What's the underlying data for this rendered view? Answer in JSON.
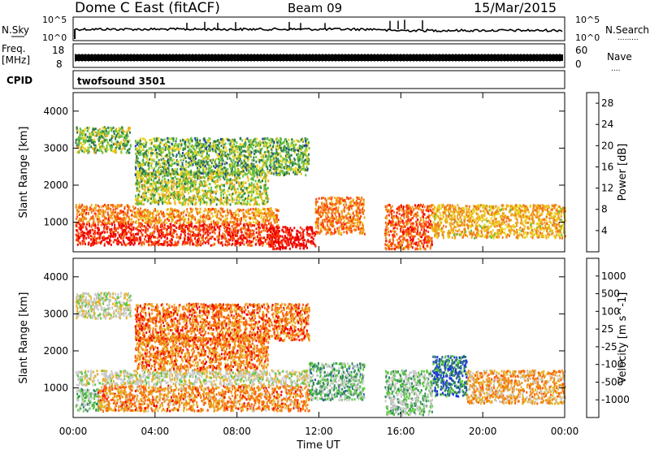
{
  "header": {
    "radar": "Dome C East (fitACF)",
    "beam": "Beam 09",
    "date": "15/Mar/2015"
  },
  "noise_panel": {
    "left_label": "N.Sky",
    "right_label": "N.Search",
    "right_marker": ".........",
    "tick_top_base": "10",
    "tick_top_exp": "^5",
    "tick_bottom_base": "10",
    "tick_bottom_exp": "^0"
  },
  "freq_panel": {
    "left_label_1": "Freq.",
    "left_label_2": "[MHz]",
    "left_tick_top": "18",
    "left_tick_bottom": "8",
    "right_label": "Nave",
    "right_marker": "....",
    "right_tick_top": "60",
    "right_tick_bottom": "0"
  },
  "cpid_panel": {
    "label": "CPID",
    "program": "twofsound 3501"
  },
  "colors": {
    "power": [
      "#1010ff",
      "#1e3fa0",
      "#2f7a4f",
      "#62c041",
      "#e8d21e",
      "#f0a51e",
      "#f07814",
      "#ff3c0a",
      "#ee0000"
    ],
    "velocity": [
      "#ee0000",
      "#ff5a0a",
      "#f08c14",
      "#e6b428",
      "#c8c8c8",
      "#c8c8c8",
      "#5ac840",
      "#2f8a5a",
      "#2a5aa8",
      "#1a2ee6"
    ]
  },
  "chart_data": [
    {
      "type": "heatmap",
      "title": "Power",
      "xlabel": "",
      "ylabel": "Slant Range [km]",
      "x_ticks": [
        "00:00",
        "04:00",
        "08:00",
        "12:00",
        "16:00",
        "20:00",
        "00:00"
      ],
      "y_ticks": [
        "1000",
        "2000",
        "3000",
        "4000"
      ],
      "xlim_hours": [
        0,
        24
      ],
      "ylim_km": [
        200,
        4500
      ],
      "colorbar": {
        "label": "Power [dB]",
        "ticks": [
          "4",
          "8",
          "12",
          "16",
          "20",
          "24",
          "28"
        ],
        "range": [
          0,
          30
        ]
      },
      "scatter_regions": [
        {
          "t": [
            0.1,
            3.0
          ],
          "r": [
            400,
            1000
          ],
          "level": 0.92
        },
        {
          "t": [
            0.1,
            3.0
          ],
          "r": [
            1000,
            1500
          ],
          "level": 0.72
        },
        {
          "t": [
            3.0,
            10.0
          ],
          "r": [
            400,
            1000
          ],
          "level": 0.86
        },
        {
          "t": [
            3.0,
            10.0
          ],
          "r": [
            1000,
            1400
          ],
          "level": 0.66
        },
        {
          "t": [
            3.0,
            9.5
          ],
          "r": [
            1500,
            2400
          ],
          "level": 0.45
        },
        {
          "t": [
            9.5,
            11.8
          ],
          "r": [
            300,
            900
          ],
          "level": 0.97
        },
        {
          "t": [
            11.8,
            14.2
          ],
          "r": [
            700,
            1700
          ],
          "level": 0.72
        },
        {
          "t": [
            15.2,
            17.5
          ],
          "r": [
            300,
            1500
          ],
          "level": 0.78
        },
        {
          "t": [
            17.5,
            24.0
          ],
          "r": [
            600,
            1500
          ],
          "level": 0.6
        },
        {
          "t": [
            0.1,
            2.8
          ],
          "r": [
            2900,
            3600
          ],
          "level": 0.42
        },
        {
          "t": [
            3.0,
            11.5
          ],
          "r": [
            2300,
            3300
          ],
          "level": 0.38
        }
      ]
    },
    {
      "type": "heatmap",
      "title": "Velocity",
      "xlabel": "Time UT",
      "ylabel": "Slant Range [km]",
      "x_ticks": [
        "00:00",
        "04:00",
        "08:00",
        "12:00",
        "16:00",
        "20:00",
        "00:00"
      ],
      "y_ticks": [
        "1000",
        "2000",
        "3000",
        "4000"
      ],
      "xlim_hours": [
        0,
        24
      ],
      "ylim_km": [
        200,
        4500
      ],
      "colorbar": {
        "label": "Velocity [m s^-1]",
        "ticks": [
          "1000",
          "500",
          "100",
          "25",
          "-25",
          "-100",
          "-500",
          "-1000"
        ]
      },
      "scatter_regions": [
        {
          "t": [
            0.1,
            1.2
          ],
          "r": [
            400,
            1000
          ],
          "level": 0.62
        },
        {
          "t": [
            1.2,
            11.5
          ],
          "r": [
            400,
            1100
          ],
          "level": 0.25
        },
        {
          "t": [
            0.1,
            11.5
          ],
          "r": [
            1100,
            1500
          ],
          "level": 0.48
        },
        {
          "t": [
            3.0,
            9.5
          ],
          "r": [
            1500,
            2400
          ],
          "level": 0.22
        },
        {
          "t": [
            11.5,
            14.2
          ],
          "r": [
            700,
            1700
          ],
          "level": 0.65
        },
        {
          "t": [
            15.2,
            17.5
          ],
          "r": [
            300,
            1500
          ],
          "level": 0.6
        },
        {
          "t": [
            17.5,
            19.2
          ],
          "r": [
            800,
            1900
          ],
          "level": 0.82
        },
        {
          "t": [
            19.2,
            24.0
          ],
          "r": [
            600,
            1500
          ],
          "level": 0.3
        },
        {
          "t": [
            0.1,
            2.8
          ],
          "r": [
            2900,
            3600
          ],
          "level": 0.48
        },
        {
          "t": [
            3.0,
            11.5
          ],
          "r": [
            2300,
            3300
          ],
          "level": 0.2
        }
      ]
    }
  ]
}
